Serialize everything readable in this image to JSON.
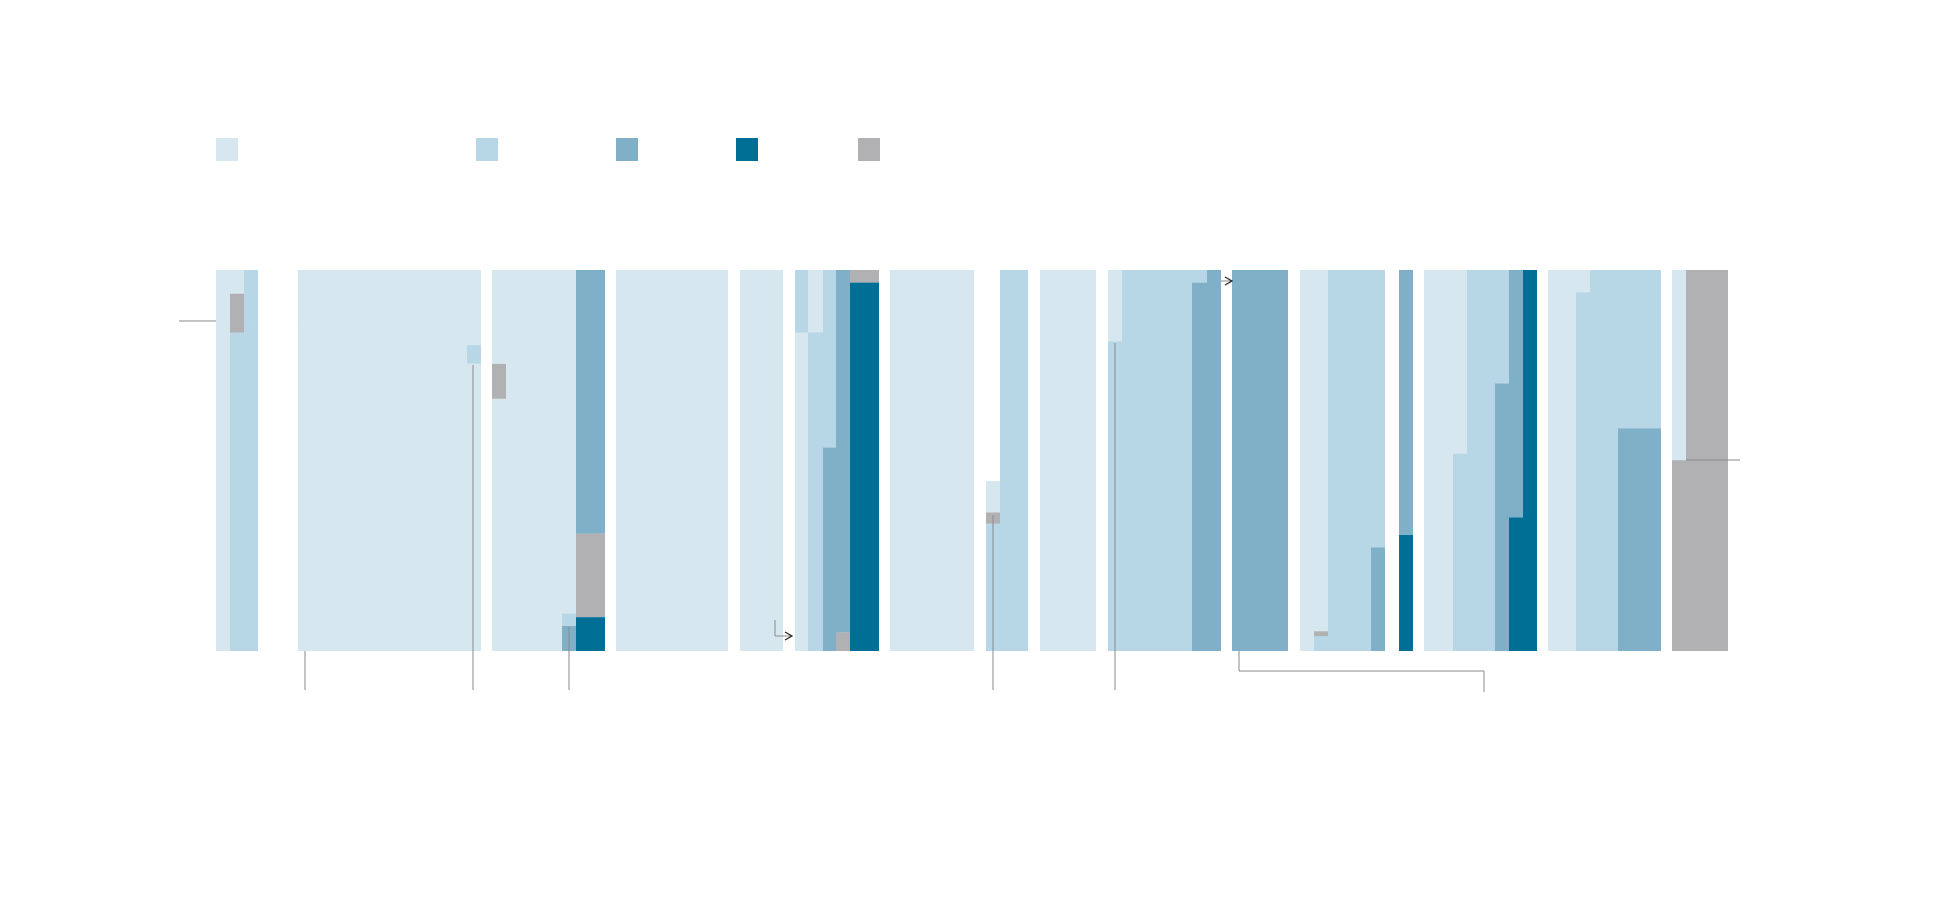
{
  "colors": {
    "very_light": "#d6e7f0",
    "light": "#b7d6e6",
    "medium": "#7fb0c8",
    "dark": "#006f95",
    "gray": "#b1b1b4",
    "line": "#8a8a8a"
  },
  "legend": [
    {
      "color_key": "very_light"
    },
    {
      "color_key": "light"
    },
    {
      "color_key": "medium"
    },
    {
      "color_key": "dark"
    },
    {
      "color_key": "gray"
    }
  ],
  "chart_data": {
    "type": "bar",
    "stacked": true,
    "normalized": true,
    "ylim": [
      0,
      1
    ],
    "columns": [
      [
        {
          "segments": [
            {
              "color": "very_light",
              "from": 0,
              "to": 0.866
            },
            {
              "color": "very_light",
              "from": 0.866,
              "to": 1
            }
          ]
        },
        {
          "segments": [
            {
              "color": "light",
              "from": 0,
              "to": 0.836
            },
            {
              "color": "gray",
              "from": 0.836,
              "to": 0.938
            },
            {
              "color": "very_light",
              "from": 0.938,
              "to": 1
            }
          ]
        },
        {
          "segments": [
            {
              "color": "light",
              "from": 0,
              "to": 0.866
            },
            {
              "color": "light",
              "from": 0.866,
              "to": 1
            }
          ]
        }
      ],
      [
        {
          "segments": [
            {
              "color": "very_light",
              "from": 0,
              "to": 0.866
            },
            {
              "color": "very_light",
              "from": 0.866,
              "to": 1
            }
          ]
        },
        {
          "segments": [
            {
              "color": "very_light",
              "from": 0,
              "to": 1
            }
          ]
        },
        {
          "segments": [
            {
              "color": "very_light",
              "from": 0,
              "to": 0.754
            },
            {
              "color": "light",
              "from": 0.754,
              "to": 0.803
            },
            {
              "color": "very_light",
              "from": 0.803,
              "to": 1
            }
          ]
        }
      ],
      [
        {
          "segments": [
            {
              "color": "very_light",
              "from": 0,
              "to": 0.662
            },
            {
              "color": "gray",
              "from": 0.662,
              "to": 0.754
            },
            {
              "color": "very_light",
              "from": 0.754,
              "to": 1
            }
          ]
        },
        {
          "segments": [
            {
              "color": "very_light",
              "from": 0,
              "to": 1
            }
          ]
        },
        {
          "segments": [
            {
              "color": "medium",
              "from": 0,
              "to": 0.066
            },
            {
              "color": "light",
              "from": 0.066,
              "to": 0.098
            },
            {
              "color": "very_light",
              "from": 0.098,
              "to": 1
            }
          ]
        },
        {
          "segments": [
            {
              "color": "dark",
              "from": 0,
              "to": 0.089
            },
            {
              "color": "gray",
              "from": 0.089,
              "to": 0.308
            },
            {
              "color": "medium",
              "from": 0.308,
              "to": 1
            }
          ]
        }
      ],
      [
        {
          "segments": [
            {
              "color": "very_light",
              "from": 0,
              "to": 1
            }
          ]
        },
        {
          "segments": [
            {
              "color": "very_light",
              "from": 0,
              "to": 1
            }
          ]
        }
      ],
      [
        {
          "segments": [
            {
              "color": "very_light",
              "from": 0,
              "to": 0.085
            },
            {
              "color": "very_light",
              "from": 0.085,
              "to": 1
            }
          ]
        },
        {
          "segments": [
            {
              "color": "very_light",
              "from": 0,
              "to": 0.085
            }
          ]
        },
        {
          "segments": [
            {
              "color": "very_light",
              "from": 0,
              "to": 0.836
            },
            {
              "color": "light",
              "from": 0.836,
              "to": 1
            }
          ]
        }
      ],
      [
        {
          "segments": [
            {
              "color": "light",
              "from": 0,
              "to": 0.836
            },
            {
              "color": "very_light",
              "from": 0.836,
              "to": 1
            }
          ]
        },
        {
          "segments": [
            {
              "color": "medium",
              "from": 0,
              "to": 0.534
            },
            {
              "color": "light",
              "from": 0.534,
              "to": 1
            }
          ]
        },
        {
          "segments": [
            {
              "color": "gray",
              "from": 0,
              "to": 0.049
            },
            {
              "color": "medium",
              "from": 0.049,
              "to": 1
            }
          ]
        },
        {
          "segments": [
            {
              "color": "dark",
              "from": 0,
              "to": 0.967
            },
            {
              "color": "gray",
              "from": 0.967,
              "to": 1
            }
          ]
        }
      ],
      [
        {
          "segments": [
            {
              "color": "very_light",
              "from": 0,
              "to": 1
            }
          ]
        },
        {
          "segments": [
            {
              "color": "very_light",
              "from": 0,
              "to": 0.446
            }
          ]
        },
        {
          "segments": [
            {
              "color": "light",
              "from": 0,
              "to": 0.334
            },
            {
              "color": "gray",
              "from": 0.334,
              "to": 0.364
            },
            {
              "color": "very_light",
              "from": 0.364,
              "to": 0.446
            }
          ]
        },
        {
          "segments": [
            {
              "color": "light",
              "from": 0,
              "to": 1
            }
          ]
        }
      ],
      [
        {
          "segments": [
            {
              "color": "very_light",
              "from": 0,
              "to": 1
            }
          ]
        },
        {
          "segments": [
            {
              "color": "very_light",
              "from": 0,
              "to": 1
            }
          ]
        }
      ],
      [
        {
          "segments": [
            {
              "color": "light",
              "from": 0,
              "to": 0.813
            },
            {
              "color": "very_light",
              "from": 0.813,
              "to": 1
            }
          ]
        },
        {
          "segments": [
            {
              "color": "light",
              "from": 0,
              "to": 1
            }
          ]
        },
        {
          "segments": [
            {
              "color": "medium",
              "from": 0,
              "to": 0.967
            },
            {
              "color": "light",
              "from": 0.967,
              "to": 1
            }
          ]
        },
        {
          "segments": [
            {
              "color": "medium",
              "from": 0,
              "to": 1
            }
          ]
        }
      ],
      [
        {
          "segments": [
            {
              "color": "medium",
              "from": 0,
              "to": 1
            }
          ]
        },
        {
          "segments": [
            {
              "color": "medium",
              "from": 0,
              "to": 1
            }
          ]
        }
      ],
      [
        {
          "segments": [
            {
              "color": "very_light",
              "from": 0,
              "to": 1
            }
          ]
        },
        {
          "segments": [
            {
              "color": "light",
              "from": 0,
              "to": 0.039
            },
            {
              "color": "gray",
              "from": 0.039,
              "to": 0.052
            },
            {
              "color": "very_light",
              "from": 0.052,
              "to": 1
            }
          ]
        },
        {
          "segments": [
            {
              "color": "light",
              "from": 0,
              "to": 1
            }
          ]
        },
        {
          "segments": [
            {
              "color": "medium",
              "from": 0,
              "to": 0.272
            },
            {
              "color": "light",
              "from": 0.272,
              "to": 1
            }
          ]
        },
        {
          "segments": [
            {
              "color": "dark",
              "from": 0,
              "to": 0.305
            },
            {
              "color": "medium",
              "from": 0.305,
              "to": 1
            }
          ]
        }
      ],
      [
        {
          "segments": [
            {
              "color": "very_light",
              "from": 0,
              "to": 1
            }
          ]
        },
        {
          "segments": [
            {
              "color": "light",
              "from": 0,
              "to": 0.518
            },
            {
              "color": "very_light",
              "from": 0.518,
              "to": 1
            }
          ]
        },
        {
          "segments": [
            {
              "color": "light",
              "from": 0,
              "to": 1
            }
          ]
        },
        {
          "segments": [
            {
              "color": "medium",
              "from": 0,
              "to": 0.702
            },
            {
              "color": "light",
              "from": 0.702,
              "to": 1
            }
          ]
        },
        {
          "segments": [
            {
              "color": "dark",
              "from": 0,
              "to": 0.351
            },
            {
              "color": "medium",
              "from": 0.351,
              "to": 1
            }
          ]
        },
        {
          "segments": [
            {
              "color": "dark",
              "from": 0,
              "to": 1
            }
          ]
        }
      ],
      [
        {
          "segments": [
            {
              "color": "very_light",
              "from": 0,
              "to": 1
            }
          ]
        },
        {
          "segments": [
            {
              "color": "light",
              "from": 0,
              "to": 0.941
            },
            {
              "color": "very_light",
              "from": 0.941,
              "to": 1
            }
          ]
        },
        {
          "segments": [
            {
              "color": "light",
              "from": 0,
              "to": 1
            }
          ]
        },
        {
          "segments": [
            {
              "color": "medium",
              "from": 0,
              "to": 0.584
            },
            {
              "color": "light",
              "from": 0.584,
              "to": 1
            }
          ]
        }
      ],
      [
        {
          "segments": [
            {
              "color": "gray",
              "from": 0,
              "to": 0.501
            },
            {
              "color": "very_light",
              "from": 0.501,
              "to": 1
            }
          ]
        },
        {
          "segments": [
            {
              "color": "gray",
              "from": 0,
              "to": 1
            }
          ]
        },
        {
          "segments": [
            {
              "color": "gray",
              "from": 0,
              "to": 1
            }
          ]
        },
        {
          "segments": [
            {
              "color": "gray",
              "from": 0,
              "to": 1
            }
          ]
        }
      ]
    ],
    "annotations": [
      {
        "type": "level-marker",
        "column": 0,
        "level": 0.866,
        "side": "left"
      },
      {
        "type": "level-marker",
        "column": 13,
        "level": 0.501,
        "side": "right"
      },
      {
        "type": "callout",
        "column": 1,
        "side": "below"
      },
      {
        "type": "callout",
        "column": 1,
        "side": "below"
      },
      {
        "type": "callout",
        "column": 2,
        "side": "below"
      },
      {
        "type": "callout",
        "column": 6,
        "side": "below"
      },
      {
        "type": "callout",
        "column": 8,
        "side": "below"
      },
      {
        "type": "bracket",
        "from_column": 9,
        "side": "below"
      },
      {
        "type": "arrow",
        "from_column": 4,
        "to_column": 5
      },
      {
        "type": "arrow",
        "from_column": 8,
        "to_column": 9
      }
    ]
  }
}
